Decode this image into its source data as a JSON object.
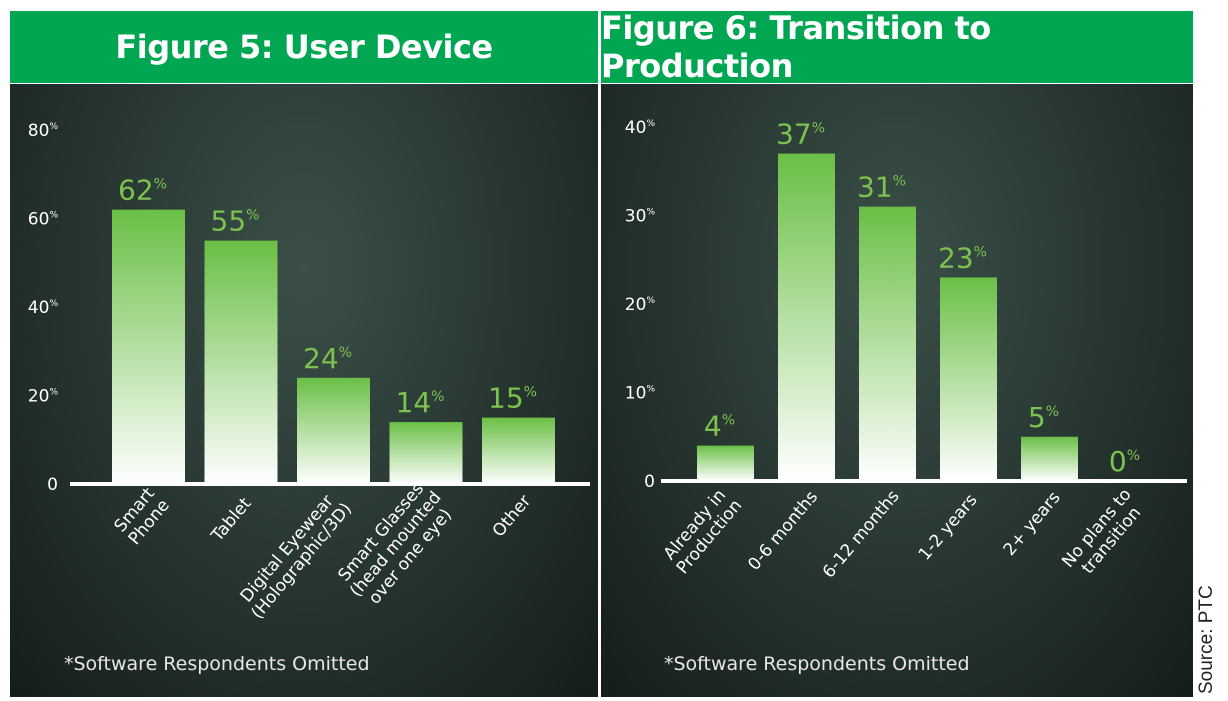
{
  "chart_data": [
    {
      "type": "bar",
      "title": "Figure 5: User Device",
      "categories": [
        [
          "Smart",
          "Phone"
        ],
        [
          "Tablet"
        ],
        [
          "Digital Eyewear",
          "(Holographic/3D)"
        ],
        [
          "Smart Glasses",
          "(head mounted",
          "over one eye)"
        ],
        [
          "Other"
        ]
      ],
      "values": [
        62,
        55,
        24,
        14,
        15
      ],
      "value_labels": [
        "62",
        "55",
        "24",
        "14",
        "15"
      ],
      "ylim": [
        0,
        80
      ],
      "yticks": [
        0,
        20,
        40,
        60,
        80
      ],
      "ytick_labels": [
        "0",
        "20",
        "40",
        "60",
        "80"
      ],
      "unit": "%",
      "footnote": "*Software Respondents Omitted"
    },
    {
      "type": "bar",
      "title": "Figure 6: Transition to Production",
      "categories": [
        [
          "Already in",
          "Production"
        ],
        [
          "0-6 months"
        ],
        [
          "6-12 months"
        ],
        [
          "1-2 years"
        ],
        [
          "2+ years"
        ],
        [
          "No plans to",
          "transition"
        ]
      ],
      "values": [
        4,
        37,
        31,
        23,
        5,
        0
      ],
      "value_labels": [
        "4",
        "37",
        "31",
        "23",
        "5",
        "0"
      ],
      "ylim": [
        0,
        40
      ],
      "yticks": [
        0,
        10,
        20,
        30,
        40
      ],
      "ytick_labels": [
        "0",
        "10",
        "20",
        "30",
        "40"
      ],
      "unit": "%",
      "footnote": "*Software Respondents Omitted"
    }
  ],
  "source": "Source: PTC",
  "colors": {
    "banner": "#00a651",
    "bar_top": "#6abf45",
    "bar_bottom": "#ffffff",
    "value_label": "#7cc24f",
    "axis_text": "#ffffff"
  }
}
